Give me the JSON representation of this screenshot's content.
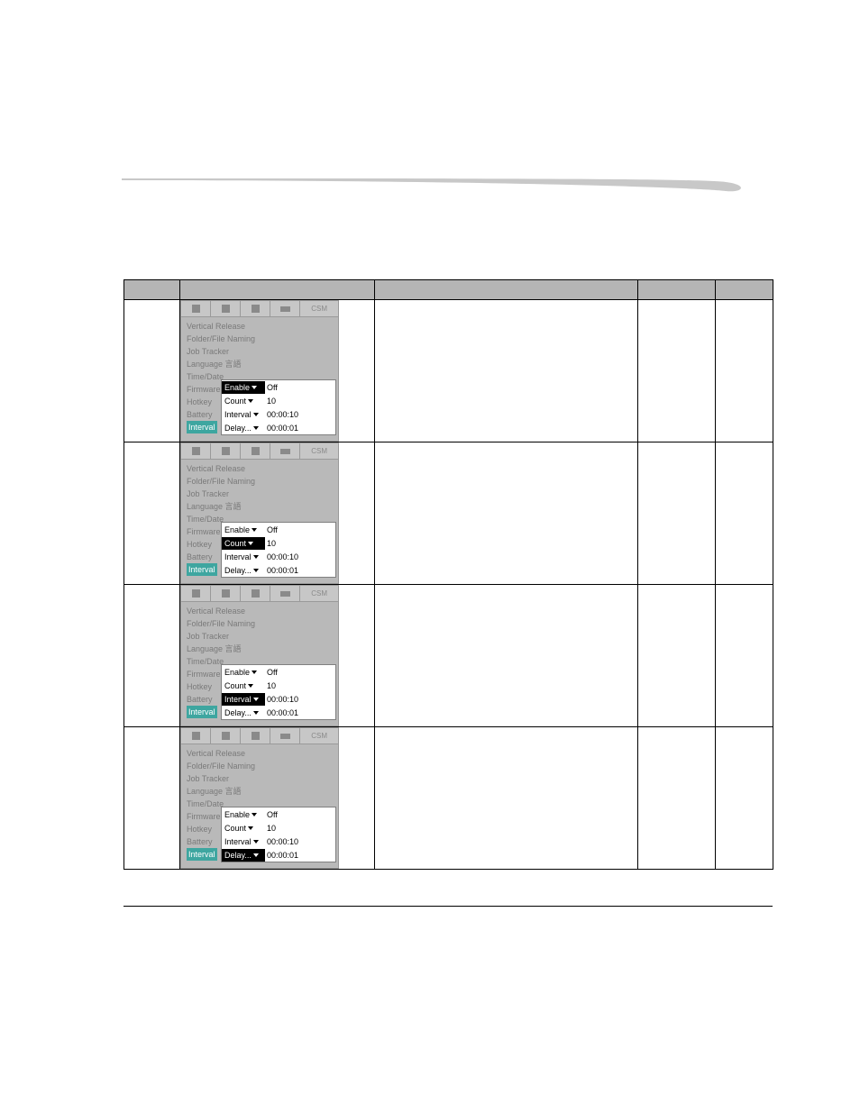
{
  "header": {},
  "ui_panel": {
    "tabs": {
      "last_label": "CSM"
    },
    "rows": [
      "Vertical Release",
      "Folder/File Naming",
      "Job Tracker",
      "Language 言語",
      "Time/Date",
      "Firmware",
      "Hotkey",
      "Battery"
    ],
    "highlight_row_label": "Interval",
    "popup": {
      "enable": {
        "label": "Enable",
        "value": "Off"
      },
      "count": {
        "label": "Count",
        "value": "10"
      },
      "interval": {
        "label": "Interval",
        "value": "00:00:10"
      },
      "delay": {
        "label": "Delay...",
        "value": "00:00:01"
      }
    }
  },
  "table": {
    "rows": [
      {
        "highlight": "enable"
      },
      {
        "highlight": "count"
      },
      {
        "highlight": "interval"
      },
      {
        "highlight": "delay"
      }
    ]
  }
}
